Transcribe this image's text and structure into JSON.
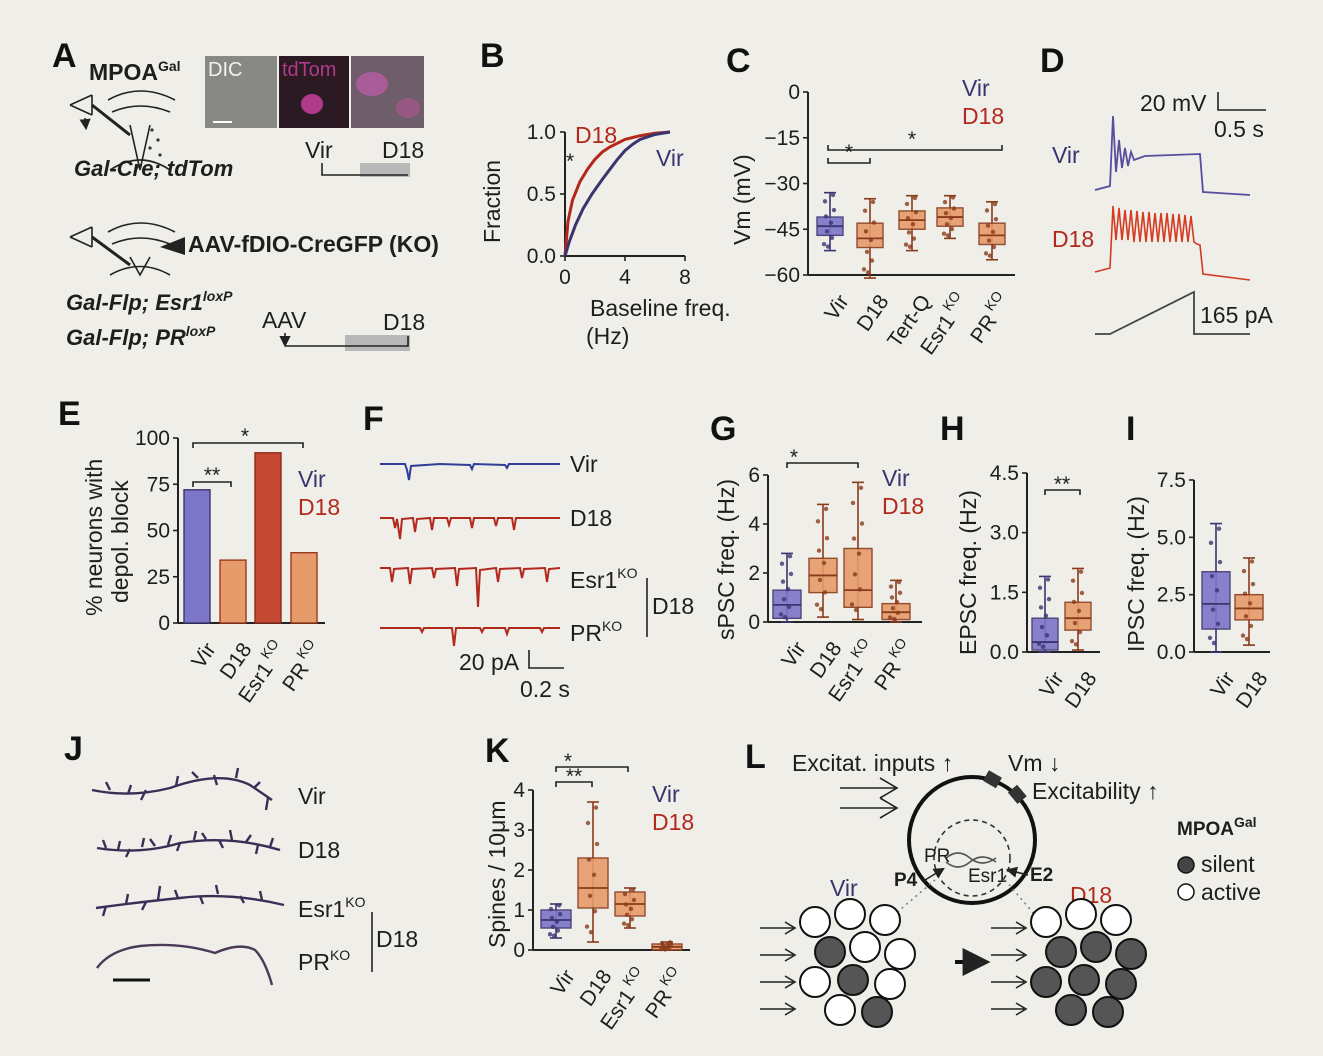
{
  "colors": {
    "vir": "#3a3470",
    "d18": "#b2291c",
    "vir_fill": "#7d75c8",
    "d18_fill": "#e79a6a",
    "background": "#efeee9"
  },
  "panels": {
    "A": "A",
    "B": "B",
    "C": "C",
    "D": "D",
    "E": "E",
    "F": "F",
    "G": "G",
    "H": "H",
    "I": "I",
    "J": "J",
    "K": "K",
    "L": "L"
  },
  "labels": {
    "vir": "Vir",
    "d18": "D18",
    "tertq": "Tert-Q",
    "esr1": "Esr1",
    "pr": "PR",
    "ko": "KO"
  },
  "panel_a": {
    "title_main": "MPOA",
    "title_sup": "Gal",
    "img_dic": "DIC",
    "img_tdtom": "tdTom",
    "genotype1": "Gal-Cre; tdTom",
    "virus": "AAV-fDIO-CreGFP (KO)",
    "genotype2": "Gal-Flp; Esr1",
    "genotype2_sup": "loxP",
    "genotype3": "Gal-Flp; PR",
    "genotype3_sup": "loxP",
    "aav": "AAV",
    "timeline_vir": "Vir",
    "timeline_d18": "D18",
    "timeline_d18_2": "D18"
  },
  "chart_data": [
    {
      "panel": "B",
      "type": "line",
      "xlabel": "Baseline freq. (Hz)",
      "ylabel": "Fraction",
      "xlim": [
        0,
        8
      ],
      "ylim": [
        0,
        1
      ],
      "xticks": [
        "0",
        "4",
        "8"
      ],
      "yticks": [
        "0.0",
        "0.5",
        "1.0"
      ],
      "significance": "*",
      "series": [
        {
          "name": "D18",
          "x": [
            0,
            0.2,
            0.5,
            1,
            1.5,
            2,
            2.5,
            3,
            3.5,
            4,
            5,
            6,
            7
          ],
          "y": [
            0,
            0.28,
            0.45,
            0.6,
            0.7,
            0.78,
            0.84,
            0.88,
            0.91,
            0.94,
            0.97,
            0.99,
            1.0
          ]
        },
        {
          "name": "Vir",
          "x": [
            0,
            0.3,
            0.7,
            1.2,
            1.8,
            2.5,
            3,
            3.5,
            4,
            4.5,
            5,
            6,
            7
          ],
          "y": [
            0,
            0.12,
            0.25,
            0.38,
            0.5,
            0.62,
            0.7,
            0.78,
            0.85,
            0.9,
            0.94,
            0.98,
            1.0
          ]
        }
      ]
    },
    {
      "panel": "C",
      "type": "box",
      "ylabel": "Vm (mV)",
      "ylim": [
        -60,
        0
      ],
      "yticks": [
        "0",
        "−15",
        "−30",
        "−45",
        "−60"
      ],
      "categories": [
        "Vir",
        "D18",
        "Tert-Q",
        "Esr1 KO",
        "PR KO"
      ],
      "significance": [
        "*",
        "*"
      ],
      "boxes": [
        {
          "q1": -47,
          "med": -44,
          "q3": -41,
          "min": -52,
          "max": -33
        },
        {
          "q1": -51,
          "med": -48,
          "q3": -43,
          "min": -61,
          "max": -35
        },
        {
          "q1": -45,
          "med": -42,
          "q3": -39,
          "min": -52,
          "max": -34
        },
        {
          "q1": -44,
          "med": -41,
          "q3": -38,
          "min": -48,
          "max": -34
        },
        {
          "q1": -50,
          "med": -47,
          "q3": -43,
          "min": -55,
          "max": -36
        }
      ]
    },
    {
      "panel": "E",
      "type": "bar",
      "ylabel": "% neurons with depol. block",
      "ylim": [
        0,
        100
      ],
      "yticks": [
        "0",
        "25",
        "50",
        "75",
        "100"
      ],
      "categories": [
        "Vir",
        "D18",
        "Esr1 KO",
        "PR KO"
      ],
      "values": [
        72,
        34,
        92,
        38
      ],
      "significance": [
        "**",
        "*"
      ]
    },
    {
      "panel": "G",
      "type": "box",
      "ylabel": "sPSC freq. (Hz)",
      "ylim": [
        0,
        6
      ],
      "yticks": [
        "0",
        "2",
        "4",
        "6"
      ],
      "categories": [
        "Vir",
        "D18",
        "Esr1 KO",
        "PR KO"
      ],
      "significance": [
        "*"
      ],
      "boxes": [
        {
          "q1": 0.15,
          "med": 0.7,
          "q3": 1.3,
          "min": 0,
          "max": 2.8
        },
        {
          "q1": 1.2,
          "med": 1.9,
          "q3": 2.6,
          "min": 0.2,
          "max": 4.8
        },
        {
          "q1": 0.6,
          "med": 1.3,
          "q3": 3.0,
          "min": 0.1,
          "max": 5.7
        },
        {
          "q1": 0.1,
          "med": 0.4,
          "q3": 0.75,
          "min": 0,
          "max": 1.7
        }
      ]
    },
    {
      "panel": "H",
      "type": "box",
      "ylabel": "EPSC freq. (Hz)",
      "ylim": [
        0,
        4.5
      ],
      "yticks": [
        "0.0",
        "1.5",
        "3.0",
        "4.5"
      ],
      "categories": [
        "Vir",
        "D18"
      ],
      "significance": [
        "**"
      ],
      "boxes": [
        {
          "q1": 0.05,
          "med": 0.25,
          "q3": 0.85,
          "min": 0,
          "max": 1.9
        },
        {
          "q1": 0.55,
          "med": 0.85,
          "q3": 1.25,
          "min": 0.05,
          "max": 2.1
        }
      ]
    },
    {
      "panel": "I",
      "type": "box",
      "ylabel": "IPSC freq. (Hz)",
      "ylim": [
        0,
        7.5
      ],
      "yticks": [
        "0.0",
        "2.5",
        "5.0",
        "7.5"
      ],
      "categories": [
        "Vir",
        "D18"
      ],
      "boxes": [
        {
          "q1": 1.0,
          "med": 2.1,
          "q3": 3.5,
          "min": 0,
          "max": 5.6
        },
        {
          "q1": 1.4,
          "med": 1.9,
          "q3": 2.5,
          "min": 0.3,
          "max": 4.1
        }
      ]
    },
    {
      "panel": "K",
      "type": "box",
      "ylabel": "Spines / 10μm",
      "ylim": [
        0,
        4
      ],
      "yticks": [
        "0",
        "1",
        "2",
        "3",
        "4"
      ],
      "categories": [
        "Vir",
        "D18",
        "Esr1 KO",
        "PR KO"
      ],
      "significance": [
        "*",
        "**"
      ],
      "boxes": [
        {
          "q1": 0.55,
          "med": 0.75,
          "q3": 1.0,
          "min": 0.3,
          "max": 1.15
        },
        {
          "q1": 1.05,
          "med": 1.55,
          "q3": 2.3,
          "min": 0.2,
          "max": 3.7
        },
        {
          "q1": 0.85,
          "med": 1.15,
          "q3": 1.45,
          "min": 0.55,
          "max": 1.55
        },
        {
          "q1": 0.0,
          "med": 0.08,
          "q3": 0.15,
          "min": 0,
          "max": 0.2
        }
      ]
    }
  ],
  "panel_d": {
    "scale_v": "20 mV",
    "scale_t": "0.5 s",
    "ramp": "165 pA"
  },
  "panel_f": {
    "scale_i": "20 pA",
    "scale_t": "0.2 s"
  },
  "panel_l": {
    "excit": "Excitat. inputs",
    "vm": "Vm",
    "excitability": "Excitability",
    "pr": "PR",
    "esr1": "Esr1",
    "p4": "P4",
    "e2": "E2",
    "legend_title": "MPOA",
    "legend_sup": "Gal",
    "silent": "silent",
    "active": "active"
  }
}
